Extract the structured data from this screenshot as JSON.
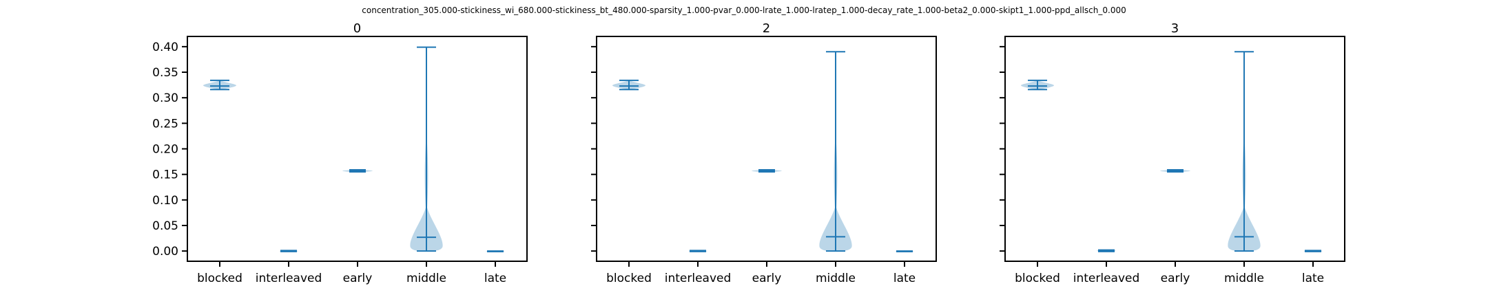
{
  "figure": {
    "suptitle": "concentration_305.000-stickiness_wi_680.000-stickiness_bt_480.000-sparsity_1.000-pvar_0.000-lrate_1.000-lratep_1.000-decay_rate_1.000-beta2_0.000-skipt1_1.000-ppd_allsch_0.000"
  },
  "colors": {
    "line": "#1f77b4",
    "body": "#1f77b4",
    "axis": "#000000"
  },
  "chart_data": [
    {
      "type": "violin",
      "title": "0",
      "categories": [
        "blocked",
        "interleaved",
        "early",
        "middle",
        "late"
      ],
      "ylim": [
        -0.02,
        0.42
      ],
      "yticks": [
        "0.00",
        "0.05",
        "0.10",
        "0.15",
        "0.20",
        "0.25",
        "0.30",
        "0.35",
        "0.40"
      ],
      "series": [
        {
          "category": "blocked",
          "min": 0.316,
          "median": 0.323,
          "max": 0.334,
          "width": 0.48
        },
        {
          "category": "interleaved",
          "min": -0.001,
          "median": 0.0,
          "max": 0.001,
          "width": 0.4
        },
        {
          "category": "early",
          "min": 0.155,
          "median": 0.157,
          "max": 0.159,
          "width": 0.4
        },
        {
          "category": "middle",
          "min": 0.0,
          "median": 0.027,
          "max": 0.399,
          "width": 0.48
        },
        {
          "category": "late",
          "min": -0.001,
          "median": -0.001,
          "max": 0.0,
          "width": 0.4
        }
      ]
    },
    {
      "type": "violin",
      "title": "2",
      "categories": [
        "blocked",
        "interleaved",
        "early",
        "middle",
        "late"
      ],
      "ylim": [
        -0.02,
        0.42
      ],
      "yticks": [
        "0.00",
        "0.05",
        "0.10",
        "0.15",
        "0.20",
        "0.25",
        "0.30",
        "0.35",
        "0.40"
      ],
      "series": [
        {
          "category": "blocked",
          "min": 0.316,
          "median": 0.323,
          "max": 0.334,
          "width": 0.48
        },
        {
          "category": "interleaved",
          "min": -0.001,
          "median": 0.0,
          "max": 0.001,
          "width": 0.4
        },
        {
          "category": "early",
          "min": 0.155,
          "median": 0.157,
          "max": 0.159,
          "width": 0.4
        },
        {
          "category": "middle",
          "min": 0.0,
          "median": 0.028,
          "max": 0.39,
          "width": 0.48
        },
        {
          "category": "late",
          "min": -0.001,
          "median": -0.001,
          "max": 0.0,
          "width": 0.4
        }
      ]
    },
    {
      "type": "violin",
      "title": "3",
      "categories": [
        "blocked",
        "interleaved",
        "early",
        "middle",
        "late"
      ],
      "ylim": [
        -0.02,
        0.42
      ],
      "yticks": [
        "0.00",
        "0.05",
        "0.10",
        "0.15",
        "0.20",
        "0.25",
        "0.30",
        "0.35",
        "0.40"
      ],
      "series": [
        {
          "category": "blocked",
          "min": 0.316,
          "median": 0.323,
          "max": 0.334,
          "width": 0.48
        },
        {
          "category": "interleaved",
          "min": -0.001,
          "median": 0.001,
          "max": 0.002,
          "width": 0.4
        },
        {
          "category": "early",
          "min": 0.155,
          "median": 0.157,
          "max": 0.159,
          "width": 0.4
        },
        {
          "category": "middle",
          "min": 0.0,
          "median": 0.028,
          "max": 0.39,
          "width": 0.48
        },
        {
          "category": "late",
          "min": -0.001,
          "median": 0.0,
          "max": 0.001,
          "width": 0.4
        }
      ]
    }
  ]
}
